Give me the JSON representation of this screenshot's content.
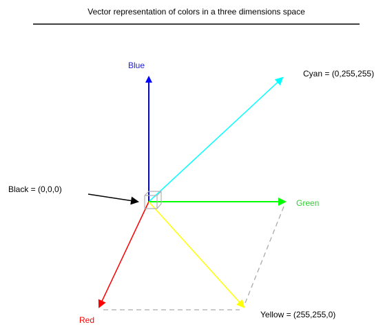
{
  "title": "Vector representation of colors in a three dimensions space",
  "labels": {
    "blue": "Blue",
    "cyan": "Cyan = (0,255,255)",
    "green": "Green",
    "red": "Red",
    "yellow": "Yellow = (255,255,0)",
    "black": "Black = (0,0,0)"
  }
}
